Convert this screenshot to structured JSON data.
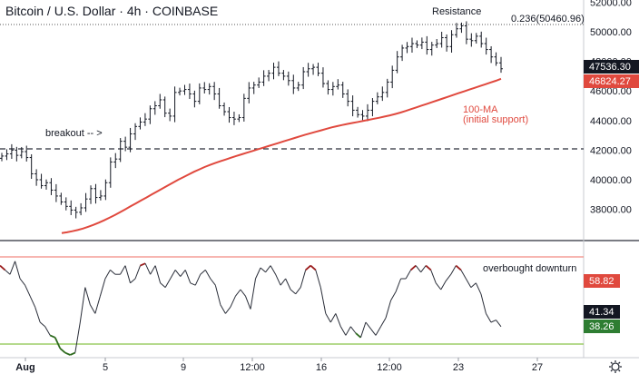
{
  "header": {
    "title": "Bitcoin / U.S. Dollar · 4h · COINBASE"
  },
  "colors": {
    "candle": "#131722",
    "ma": "#e0493e",
    "rsi_line": "#2a2e39",
    "rsi_overbought": "#9b1c1c",
    "rsi_oversold": "#2e6b1e",
    "upper_band": "#f28b82",
    "lower_band": "#8bc34a",
    "price_tag": "#131722",
    "ma_tag": "#e0493e",
    "rsi_red_tag": "#e0493e",
    "rsi_dark_tag": "#131722",
    "rsi_green_tag": "#2e7d32"
  },
  "annotations": {
    "resistance": "Resistance",
    "fib": "0.236(50460.96)",
    "breakout": "breakout -- >",
    "ma_line1": "100-MA",
    "ma_line2": "(initial support)",
    "rsi_note": "overbought downturn"
  },
  "chart_data": {
    "type": "candlestick",
    "price_axis": {
      "ticks": [
        "52000.00",
        "50000.00",
        "48000.00",
        "46000.00",
        "44000.00",
        "42000.00",
        "40000.00",
        "38000.00"
      ],
      "tick_values": [
        52000,
        50000,
        48000,
        46000,
        44000,
        42000,
        40000,
        38000
      ]
    },
    "x_axis": {
      "tick_labels": [
        "Aug",
        "5",
        "9",
        "12:00",
        "16",
        "12:00",
        "23",
        "27"
      ]
    },
    "resistance_level": 50460.96,
    "breakout_level": 42000,
    "last_price": "47536.30",
    "ma_value": "46824.27",
    "closes": [
      41600,
      41750,
      42000,
      41650,
      41900,
      41500,
      40400,
      40000,
      39600,
      39800,
      39300,
      38900,
      38500,
      38200,
      37950,
      37800,
      38100,
      38700,
      39400,
      38800,
      38900,
      39800,
      41200,
      41400,
      42600,
      42200,
      43100,
      43600,
      43900,
      44100,
      44800,
      45000,
      45400,
      44500,
      44300,
      45900,
      46000,
      46100,
      45800,
      45300,
      46200,
      46100,
      46300,
      45800,
      45000,
      44600,
      44200,
      44100,
      44200,
      45500,
      46200,
      46400,
      46600,
      47000,
      47200,
      47600,
      47200,
      47000,
      46700,
      46200,
      46400,
      47300,
      47500,
      47600,
      47200,
      46500,
      46100,
      46300,
      46400,
      45800,
      45300,
      44700,
      44400,
      44300,
      44700,
      45300,
      45600,
      45900,
      46600,
      47400,
      48300,
      48900,
      49000,
      49200,
      49100,
      49300,
      48800,
      49100,
      49200,
      49600,
      49000,
      49800,
      50200,
      50400,
      49500,
      49400,
      49700,
      49200,
      48800,
      48300,
      47900,
      47500
    ],
    "ma_values": [
      36400,
      36450,
      36520,
      36600,
      36700,
      36820,
      36950,
      37100,
      37260,
      37430,
      37610,
      37800,
      38000,
      38200,
      38400,
      38600,
      38800,
      39000,
      39200,
      39400,
      39600,
      39800,
      40000,
      40180,
      40360,
      40540,
      40700,
      40860,
      41000,
      41130,
      41250,
      41370,
      41490,
      41610,
      41720,
      41830,
      41940,
      42050,
      42160,
      42270,
      42380,
      42490,
      42600,
      42710,
      42820,
      42930,
      43040,
      43140,
      43240,
      43340,
      43440,
      43540,
      43620,
      43700,
      43770,
      43840,
      43910,
      43980,
      44050,
      44120,
      44190,
      44270,
      44350,
      44440,
      44540,
      44650,
      44770,
      44890,
      45010,
      45130,
      45250,
      45370,
      45490,
      45610,
      45730,
      45850,
      45970,
      46090,
      46210,
      46330,
      46450,
      46570,
      46690,
      46824
    ],
    "rsi": {
      "value_red": "58.82",
      "value_dark": "41.34",
      "value_green": "38.26",
      "series": [
        66,
        64,
        62,
        68,
        60,
        57,
        52,
        47,
        40,
        38,
        34,
        33,
        28,
        26,
        25,
        26,
        40,
        56,
        48,
        44,
        52,
        60,
        64,
        62,
        62,
        66,
        58,
        60,
        66,
        67,
        62,
        66,
        58,
        56,
        60,
        64,
        61,
        64,
        58,
        57,
        62,
        64,
        60,
        57,
        48,
        44,
        47,
        52,
        55,
        52,
        46,
        60,
        65,
        63,
        66,
        62,
        57,
        60,
        55,
        53,
        56,
        64,
        66,
        64,
        56,
        44,
        40,
        44,
        38,
        34,
        38,
        35,
        33,
        40,
        37,
        34,
        38,
        42,
        50,
        54,
        60,
        60,
        64,
        66,
        63,
        66,
        64,
        58,
        55,
        59,
        62,
        66,
        64,
        60,
        56,
        58,
        53,
        44,
        40,
        41,
        38
      ]
    }
  }
}
